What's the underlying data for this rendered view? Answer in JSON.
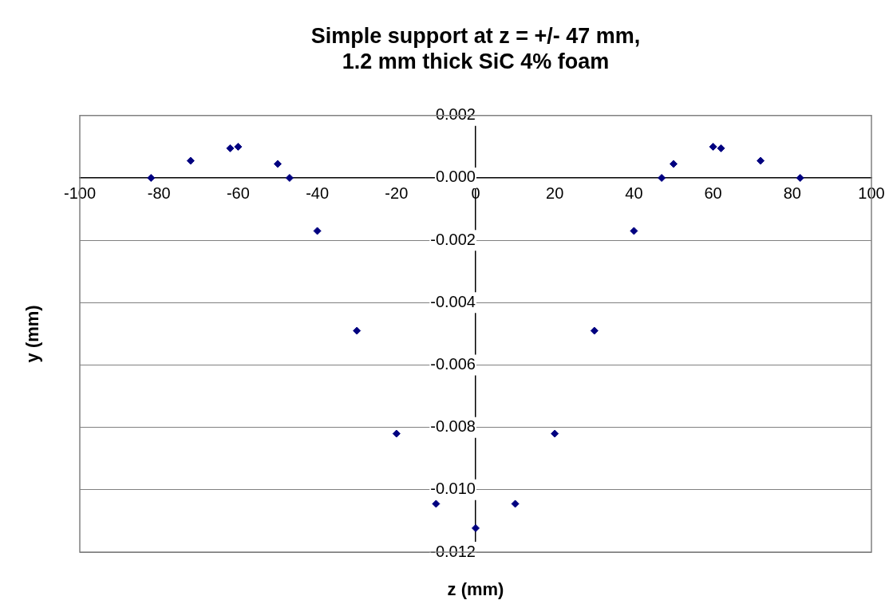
{
  "chart_data": {
    "type": "scatter",
    "title": "Simple support at z = +/- 47 mm,\n1.2 mm thick SiC 4% foam",
    "xlabel": "z (mm)",
    "ylabel": "y (mm)",
    "x": [
      -82,
      -72,
      -62,
      -60,
      -50,
      -47,
      -40,
      -30,
      -20,
      -10,
      0,
      10,
      20,
      30,
      40,
      47,
      50,
      60,
      62,
      72,
      82
    ],
    "series": [
      {
        "color": "#000080",
        "values": [
          0,
          0.00055,
          0.00095,
          0.001,
          0.00045,
          0,
          -0.0017,
          -0.0049,
          -0.0082,
          -0.01045,
          -0.01123,
          -0.01045,
          -0.0082,
          -0.0049,
          -0.0017,
          0,
          0.00045,
          0.001,
          0.00095,
          0.00055,
          0
        ]
      }
    ],
    "xlim": [
      -100,
      100
    ],
    "xticks": [
      -100,
      -80,
      -60,
      -40,
      -20,
      0,
      20,
      40,
      60,
      80,
      100
    ],
    "ylim": [
      -0.012,
      0.002
    ],
    "yticks": [
      {
        "value": -0.012,
        "label": "-0.012"
      },
      {
        "value": -0.01,
        "label": "-0.010"
      },
      {
        "value": -0.008,
        "label": "-0.008"
      },
      {
        "value": -0.006,
        "label": "-0.006"
      },
      {
        "value": -0.004,
        "label": "-0.004"
      },
      {
        "value": -0.002,
        "label": "-0.002"
      },
      {
        "value": 0,
        "label": "0.000"
      },
      {
        "value": 0.002,
        "label": "0.002"
      }
    ],
    "grid": "y",
    "legend": false,
    "marker": "diamond"
  }
}
